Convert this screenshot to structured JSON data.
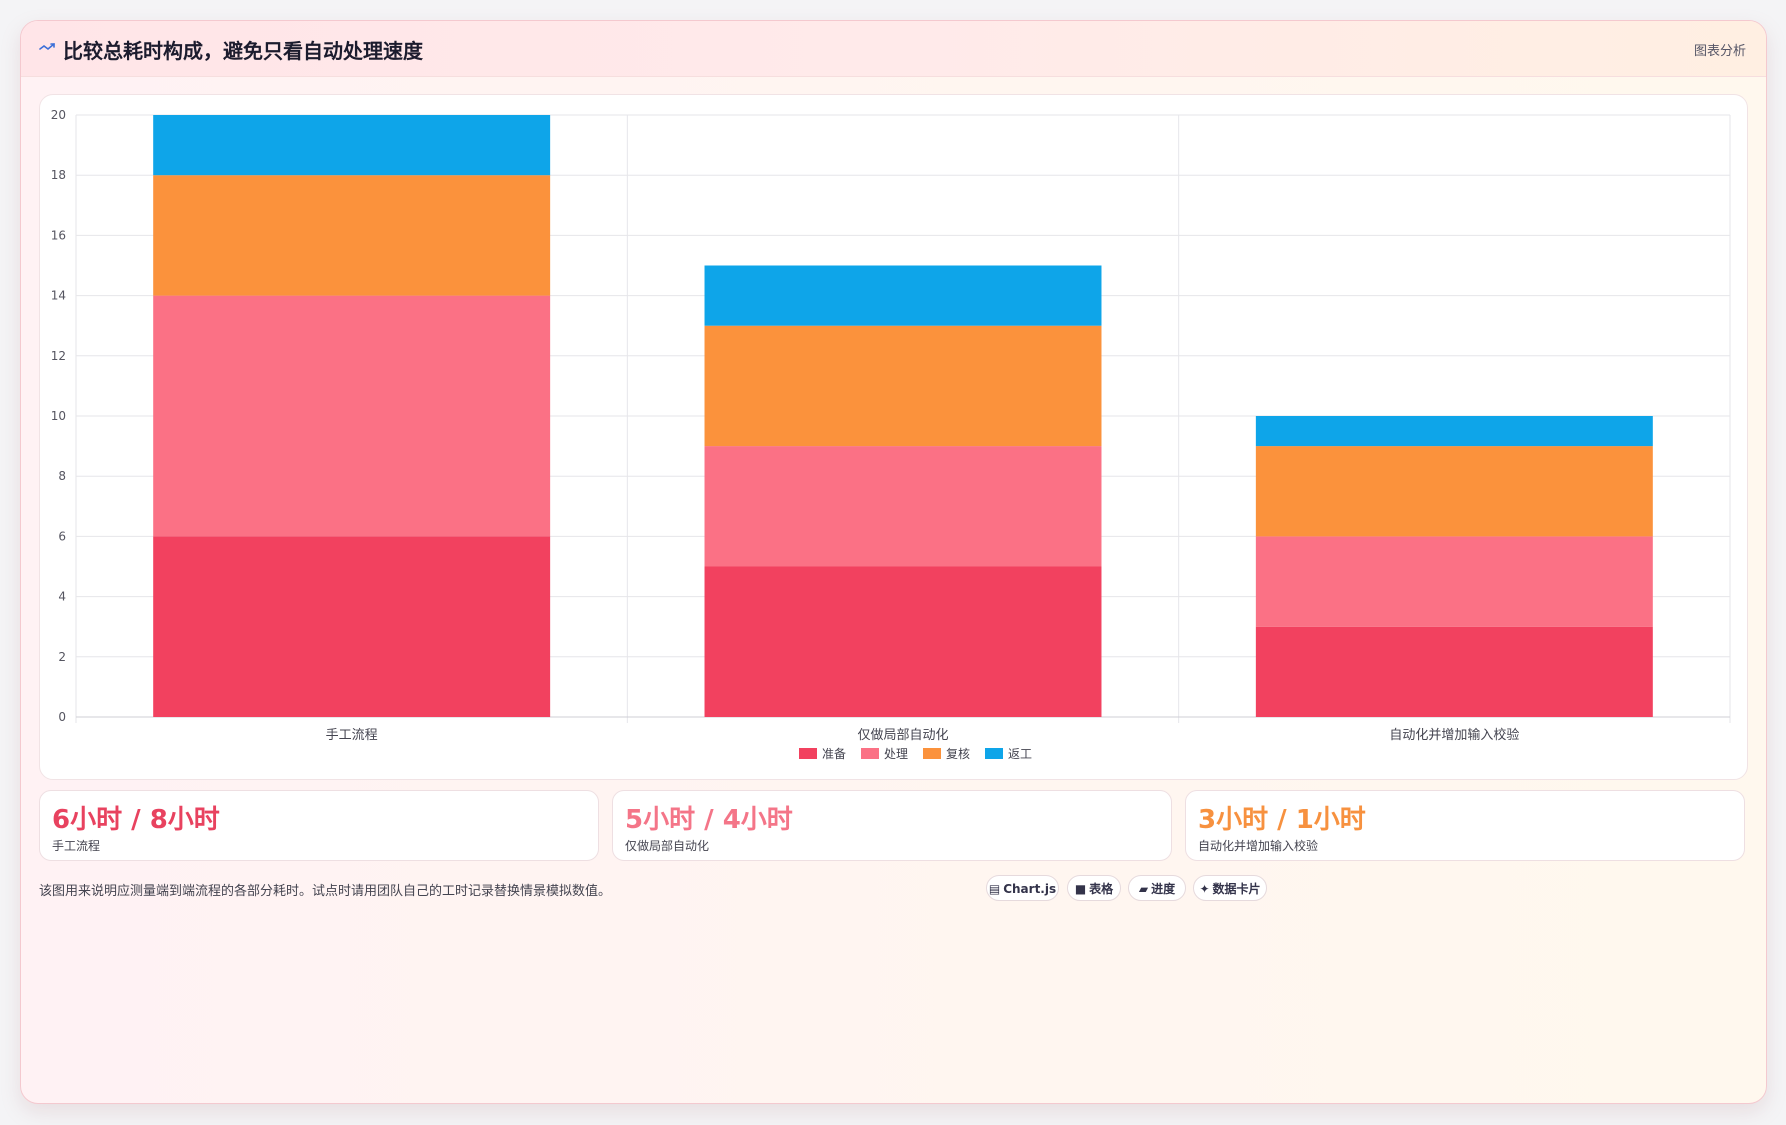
{
  "header": {
    "title": "比较总耗时构成，避免只看自动处理速度",
    "tag": "图表分析",
    "icon": "trend-line-icon"
  },
  "chart_data": {
    "type": "bar",
    "stacked": true,
    "categories": [
      "手工流程",
      "仅做局部自动化",
      "自动化并增加输入校验"
    ],
    "series": [
      {
        "name": "准备",
        "color": "#f2415f",
        "values": [
          6,
          5,
          3
        ]
      },
      {
        "name": "处理",
        "color": "#fb7185",
        "values": [
          8,
          4,
          3
        ]
      },
      {
        "name": "复核",
        "color": "#fb923c",
        "values": [
          4,
          4,
          3
        ]
      },
      {
        "name": "返工",
        "color": "#0ea5e9",
        "values": [
          2,
          2,
          1
        ]
      }
    ],
    "ylim": [
      0,
      20
    ],
    "yticks": [
      0,
      2,
      4,
      6,
      8,
      10,
      12,
      14,
      16,
      18,
      20
    ],
    "grid": true,
    "legend_position": "bottom"
  },
  "stats": [
    {
      "value": "6小时 / 8小时",
      "label": "手工流程",
      "color": "#e8425f"
    },
    {
      "value": "5小时 / 4小时",
      "label": "仅做局部自动化",
      "color": "#f47588"
    },
    {
      "value": "3小时 / 1小时",
      "label": "自动化并增加输入校验",
      "color": "#f7913f"
    }
  ],
  "footnote": "该图用来说明应测量端到端流程的各部分耗时。试点时请用团队自己的工时记录替换情景模拟数值。",
  "pills": [
    {
      "glyph": "▤",
      "label": "Chart.js",
      "icon": "chart-icon"
    },
    {
      "glyph": "■",
      "label": "表格",
      "icon": "table-icon"
    },
    {
      "glyph": "▰",
      "label": "进度",
      "icon": "progress-icon"
    },
    {
      "glyph": "✦",
      "label": "数据卡片",
      "icon": "sparkle-icon"
    }
  ]
}
